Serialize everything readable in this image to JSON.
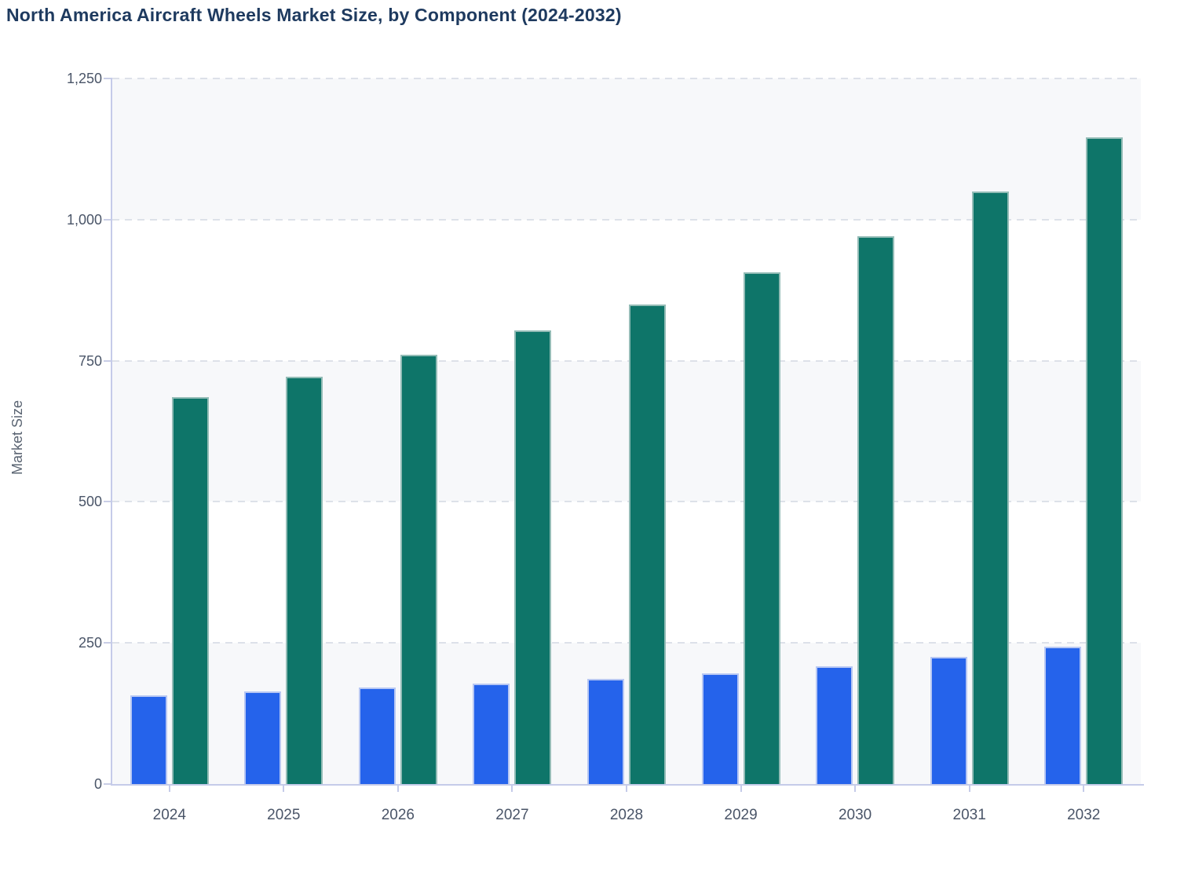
{
  "title": "North America Aircraft Wheels Market Size, by Component (2024-2032)",
  "colors": {
    "series_blue": "#2563eb",
    "series_teal": "#0e7569",
    "title_text": "#1e3a5f",
    "tick_text": "#4a5568",
    "axis_line": "#c5cbe9",
    "gridline": "#dde1e9",
    "band_fill": "#f7f8fa"
  },
  "chart_data": {
    "type": "bar",
    "title": "North America Aircraft Wheels Market Size, by Component (2024-2032)",
    "xlabel": "",
    "ylabel": "Market Size",
    "categories": [
      "2024",
      "2025",
      "2026",
      "2027",
      "2028",
      "2029",
      "2030",
      "2031",
      "2032"
    ],
    "series": [
      {
        "name": "series_1",
        "color": "#2563eb",
        "values": [
          157,
          164,
          171,
          178,
          187,
          196,
          209,
          225,
          243
        ]
      },
      {
        "name": "series_2",
        "color": "#0e7569",
        "values": [
          686,
          722,
          760,
          804,
          850,
          906,
          971,
          1050,
          1146
        ]
      }
    ],
    "ylim": [
      0,
      1250
    ],
    "yticks": [
      {
        "value": 0,
        "label": "0"
      },
      {
        "value": 250,
        "label": "250"
      },
      {
        "value": 500,
        "label": "500"
      },
      {
        "value": 750,
        "label": "750"
      },
      {
        "value": 1000,
        "label": "1,000"
      },
      {
        "value": 1250,
        "label": "1,250"
      }
    ],
    "grid": "horizontal-dashed",
    "legend": "none",
    "alternating_bands": true
  }
}
